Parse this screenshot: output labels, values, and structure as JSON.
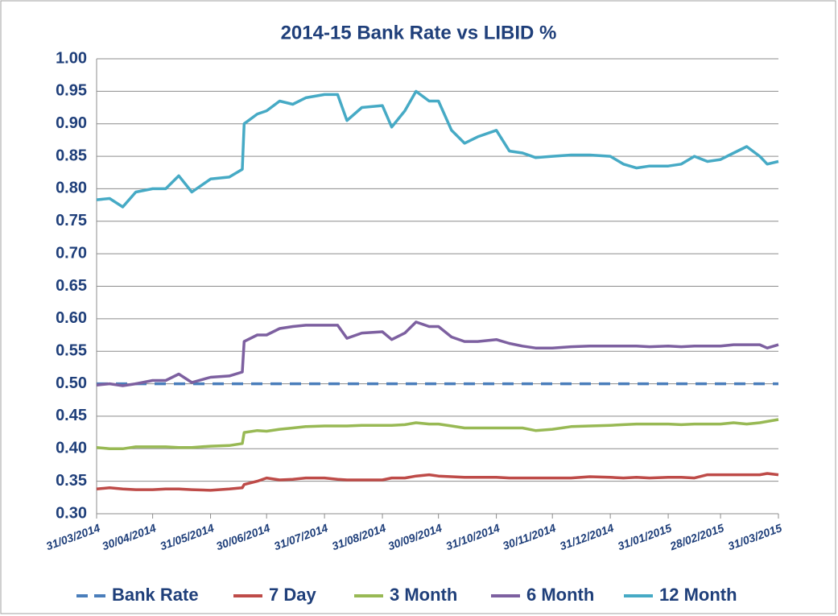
{
  "chart_data": {
    "type": "line",
    "title": "2014-15  Bank Rate vs LIBID %",
    "x": [
      "31/03/2014",
      "07/04/2014",
      "14/04/2014",
      "21/04/2014",
      "30/04/2014",
      "07/05/2014",
      "14/05/2014",
      "21/05/2014",
      "31/05/2014",
      "10/06/2014",
      "17/06/2014",
      "18/06/2014",
      "25/06/2014",
      "30/06/2014",
      "07/07/2014",
      "14/07/2014",
      "21/07/2014",
      "31/07/2014",
      "07/08/2014",
      "12/08/2014",
      "20/08/2014",
      "31/08/2014",
      "05/09/2014",
      "12/09/2014",
      "18/09/2014",
      "25/09/2014",
      "30/09/2014",
      "07/10/2014",
      "14/10/2014",
      "21/10/2014",
      "31/10/2014",
      "07/11/2014",
      "14/11/2014",
      "21/11/2014",
      "30/11/2014",
      "10/12/2014",
      "20/12/2014",
      "31/12/2014",
      "07/01/2015",
      "14/01/2015",
      "21/01/2015",
      "31/01/2015",
      "07/02/2015",
      "14/02/2015",
      "21/02/2015",
      "28/02/2015",
      "07/03/2015",
      "14/03/2015",
      "21/03/2015",
      "25/03/2015",
      "31/03/2015"
    ],
    "series": [
      {
        "name": "Bank Rate",
        "color": "#4a7ebb",
        "line_style": "dashed",
        "values": [
          0.5,
          0.5,
          0.5,
          0.5,
          0.5,
          0.5,
          0.5,
          0.5,
          0.5,
          0.5,
          0.5,
          0.5,
          0.5,
          0.5,
          0.5,
          0.5,
          0.5,
          0.5,
          0.5,
          0.5,
          0.5,
          0.5,
          0.5,
          0.5,
          0.5,
          0.5,
          0.5,
          0.5,
          0.5,
          0.5,
          0.5,
          0.5,
          0.5,
          0.5,
          0.5,
          0.5,
          0.5,
          0.5,
          0.5,
          0.5,
          0.5,
          0.5,
          0.5,
          0.5,
          0.5,
          0.5,
          0.5,
          0.5,
          0.5,
          0.5,
          0.5
        ]
      },
      {
        "name": "7 Day",
        "color": "#be4b48",
        "line_style": "solid",
        "values": [
          0.338,
          0.34,
          0.338,
          0.337,
          0.337,
          0.338,
          0.338,
          0.337,
          0.336,
          0.338,
          0.34,
          0.345,
          0.35,
          0.355,
          0.352,
          0.353,
          0.355,
          0.355,
          0.353,
          0.352,
          0.352,
          0.352,
          0.355,
          0.355,
          0.358,
          0.36,
          0.358,
          0.357,
          0.356,
          0.356,
          0.356,
          0.355,
          0.355,
          0.355,
          0.355,
          0.355,
          0.357,
          0.356,
          0.355,
          0.356,
          0.355,
          0.356,
          0.356,
          0.355,
          0.36,
          0.36,
          0.36,
          0.36,
          0.36,
          0.362,
          0.36
        ]
      },
      {
        "name": "3 Month",
        "color": "#98b954",
        "line_style": "solid",
        "values": [
          0.402,
          0.4,
          0.4,
          0.403,
          0.403,
          0.403,
          0.402,
          0.402,
          0.404,
          0.405,
          0.408,
          0.425,
          0.428,
          0.427,
          0.43,
          0.432,
          0.434,
          0.435,
          0.435,
          0.435,
          0.436,
          0.436,
          0.436,
          0.437,
          0.44,
          0.438,
          0.438,
          0.435,
          0.432,
          0.432,
          0.432,
          0.432,
          0.432,
          0.428,
          0.43,
          0.434,
          0.435,
          0.436,
          0.437,
          0.438,
          0.438,
          0.438,
          0.437,
          0.438,
          0.438,
          0.438,
          0.44,
          0.438,
          0.44,
          0.442,
          0.445
        ]
      },
      {
        "name": "6 Month",
        "color": "#7d60a0",
        "line_style": "solid",
        "values": [
          0.498,
          0.5,
          0.497,
          0.5,
          0.505,
          0.505,
          0.515,
          0.502,
          0.51,
          0.512,
          0.518,
          0.565,
          0.575,
          0.575,
          0.585,
          0.588,
          0.59,
          0.59,
          0.59,
          0.57,
          0.578,
          0.58,
          0.568,
          0.578,
          0.595,
          0.588,
          0.588,
          0.572,
          0.565,
          0.565,
          0.568,
          0.562,
          0.558,
          0.555,
          0.555,
          0.557,
          0.558,
          0.558,
          0.558,
          0.558,
          0.557,
          0.558,
          0.557,
          0.558,
          0.558,
          0.558,
          0.56,
          0.56,
          0.56,
          0.555,
          0.56
        ]
      },
      {
        "name": "12 Month",
        "color": "#46aac5",
        "line_style": "solid",
        "values": [
          0.783,
          0.785,
          0.772,
          0.795,
          0.8,
          0.8,
          0.82,
          0.795,
          0.815,
          0.818,
          0.83,
          0.9,
          0.915,
          0.92,
          0.935,
          0.93,
          0.94,
          0.945,
          0.945,
          0.905,
          0.925,
          0.928,
          0.895,
          0.92,
          0.95,
          0.935,
          0.935,
          0.89,
          0.87,
          0.88,
          0.89,
          0.858,
          0.855,
          0.848,
          0.85,
          0.852,
          0.852,
          0.85,
          0.838,
          0.832,
          0.835,
          0.835,
          0.838,
          0.85,
          0.842,
          0.845,
          0.855,
          0.865,
          0.85,
          0.838,
          0.842
        ]
      }
    ],
    "xlim": [
      "31/03/2014",
      "31/03/2015"
    ],
    "xticks": [
      "31/03/2014",
      "30/04/2014",
      "31/05/2014",
      "30/06/2014",
      "31/07/2014",
      "31/08/2014",
      "30/09/2014",
      "31/10/2014",
      "30/11/2014",
      "31/12/2014",
      "31/01/2015",
      "28/02/2015",
      "31/03/2015"
    ],
    "ylim": [
      0.3,
      1.0
    ],
    "yticks": [
      {
        "value": 0.3,
        "label": "0.30"
      },
      0.35,
      {
        "value": 0.4,
        "label": "0.40"
      },
      0.45,
      {
        "value": 0.5,
        "label": "0.50"
      },
      0.55,
      {
        "value": 0.6,
        "label": "0.60"
      },
      0.65,
      {
        "value": 0.7,
        "label": "0.70"
      },
      0.75,
      {
        "value": 0.8,
        "label": "0.80"
      },
      0.85,
      {
        "value": 0.9,
        "label": "0.90"
      },
      0.95,
      {
        "value": 1.0,
        "label": "1.00"
      }
    ],
    "grid": true,
    "legend": "bottom"
  }
}
